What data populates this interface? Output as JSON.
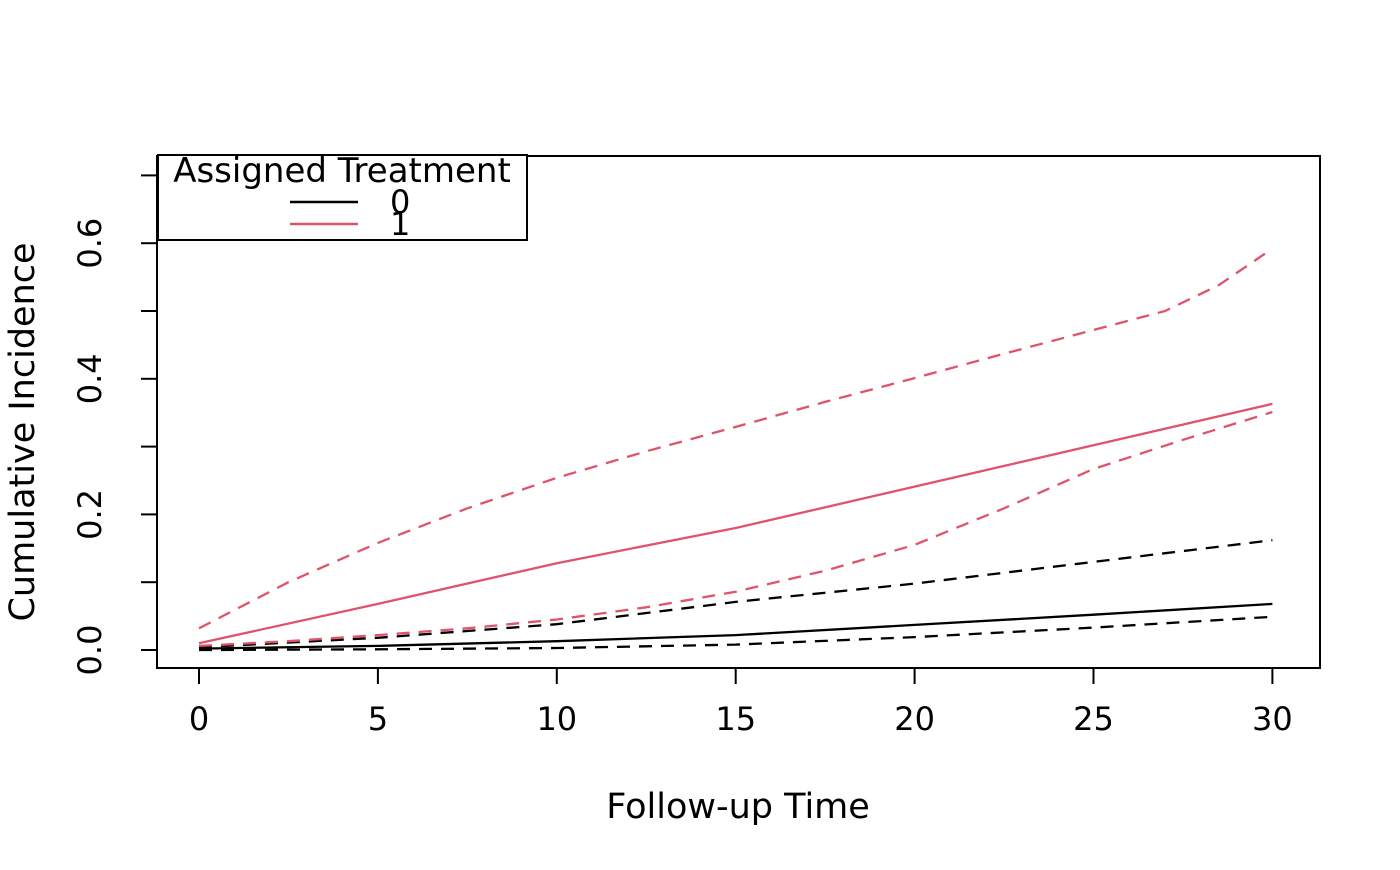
{
  "chart_data": {
    "type": "line",
    "title": "",
    "xlabel": "Follow-up Time",
    "ylabel": "Cumulative Incidence",
    "xlim": [
      0,
      30
    ],
    "ylim": [
      0.0,
      0.7
    ],
    "grid": "off",
    "x_ticks": [
      {
        "v": 0,
        "label": "0"
      },
      {
        "v": 5,
        "label": "5"
      },
      {
        "v": 10,
        "label": "10"
      },
      {
        "v": 15,
        "label": "15"
      },
      {
        "v": 20,
        "label": "20"
      },
      {
        "v": 25,
        "label": "25"
      },
      {
        "v": 30,
        "label": "30"
      }
    ],
    "y_ticks": [
      {
        "v": 0.0,
        "label": "0.0"
      },
      {
        "v": 0.1,
        "label": ""
      },
      {
        "v": 0.2,
        "label": "0.2"
      },
      {
        "v": 0.3,
        "label": ""
      },
      {
        "v": 0.4,
        "label": "0.4"
      },
      {
        "v": 0.5,
        "label": ""
      },
      {
        "v": 0.6,
        "label": "0.6"
      },
      {
        "v": 0.7,
        "label": ""
      }
    ],
    "legend": {
      "position": "top-left",
      "title": "Assigned Treatment",
      "entries": [
        {
          "label": "0",
          "color": "#000000",
          "line": "solid"
        },
        {
          "label": "1",
          "color": "#DF536B",
          "line": "solid"
        }
      ]
    },
    "colors": {
      "treatment0": "#000000",
      "treatment1": "#DF536B"
    },
    "series": [
      {
        "name": "treatment-0-estimate",
        "legend_group": "0",
        "color": "#000000",
        "line": "solid",
        "points": [
          [
            0,
            0.002
          ],
          [
            5,
            0.006
          ],
          [
            10,
            0.013
          ],
          [
            15,
            0.022
          ],
          [
            20,
            0.037
          ],
          [
            25,
            0.052
          ],
          [
            30,
            0.068
          ]
        ]
      },
      {
        "name": "treatment-0-upper-ci",
        "legend_group": "0",
        "color": "#000000",
        "line": "dashed",
        "points": [
          [
            0,
            0.004
          ],
          [
            5,
            0.018
          ],
          [
            10,
            0.038
          ],
          [
            15,
            0.071
          ],
          [
            20,
            0.098
          ],
          [
            25,
            0.13
          ],
          [
            30,
            0.162
          ]
        ]
      },
      {
        "name": "treatment-0-lower-ci",
        "legend_group": "0",
        "color": "#000000",
        "line": "dashed",
        "points": [
          [
            0,
            0.0
          ],
          [
            5,
            0.001
          ],
          [
            10,
            0.003
          ],
          [
            15,
            0.008
          ],
          [
            20,
            0.019
          ],
          [
            25,
            0.033
          ],
          [
            30,
            0.049
          ]
        ]
      },
      {
        "name": "treatment-1-estimate",
        "legend_group": "1",
        "color": "#DF536B",
        "line": "solid",
        "points": [
          [
            0,
            0.01
          ],
          [
            5,
            0.068
          ],
          [
            10,
            0.128
          ],
          [
            15,
            0.18
          ],
          [
            20,
            0.241
          ],
          [
            25,
            0.302
          ],
          [
            30,
            0.363
          ]
        ]
      },
      {
        "name": "treatment-1-upper-ci",
        "legend_group": "1",
        "color": "#DF536B",
        "line": "dashed",
        "points": [
          [
            0,
            0.032
          ],
          [
            2.5,
            0.1
          ],
          [
            5,
            0.158
          ],
          [
            7.5,
            0.209
          ],
          [
            10,
            0.254
          ],
          [
            12.5,
            0.293
          ],
          [
            15,
            0.329
          ],
          [
            17.5,
            0.366
          ],
          [
            20,
            0.401
          ],
          [
            22.5,
            0.437
          ],
          [
            25,
            0.472
          ],
          [
            27,
            0.5
          ],
          [
            28.5,
            0.538
          ],
          [
            30,
            0.592
          ]
        ]
      },
      {
        "name": "treatment-1-lower-ci",
        "legend_group": "1",
        "color": "#DF536B",
        "line": "dashed",
        "points": [
          [
            0,
            0.006
          ],
          [
            2.5,
            0.013
          ],
          [
            5,
            0.022
          ],
          [
            7.5,
            0.032
          ],
          [
            10,
            0.045
          ],
          [
            12.5,
            0.063
          ],
          [
            15,
            0.086
          ],
          [
            17.5,
            0.117
          ],
          [
            20,
            0.155
          ],
          [
            22.5,
            0.209
          ],
          [
            25,
            0.267
          ],
          [
            27.5,
            0.31
          ],
          [
            30,
            0.351
          ]
        ]
      }
    ]
  }
}
